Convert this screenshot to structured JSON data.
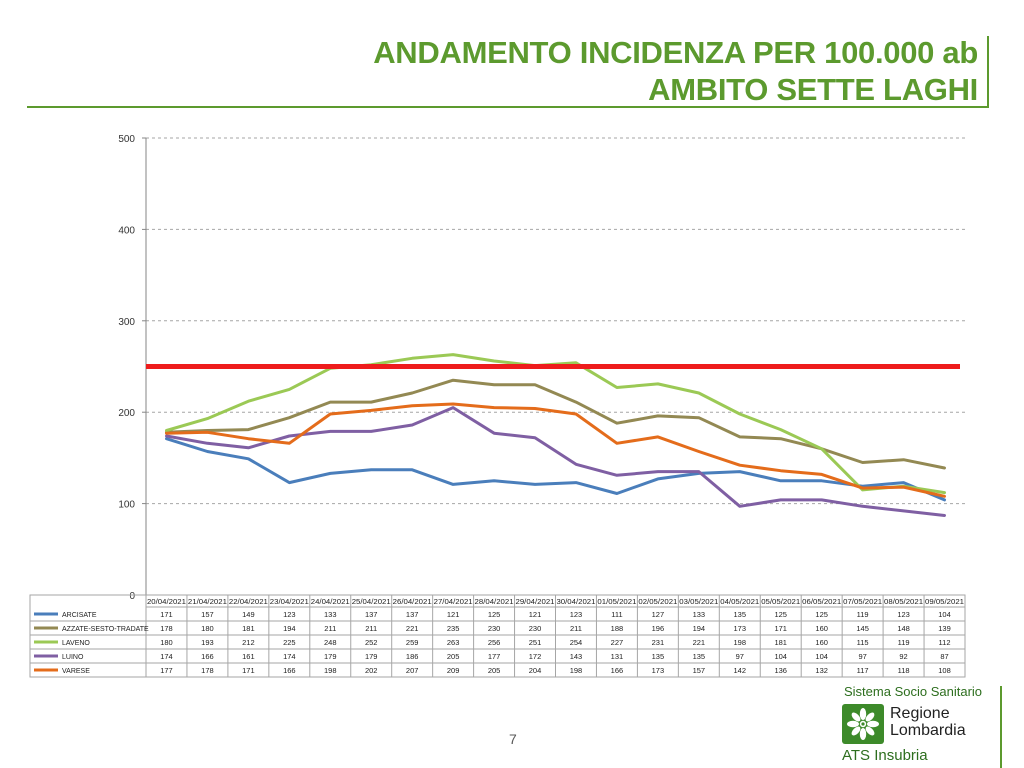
{
  "slide": {
    "title_line1": "ANDAMENTO INCIDENZA PER 100.000 ab",
    "title_line2": "AMBITO SETTE LAGHI",
    "page_number": "7"
  },
  "logo": {
    "top_text": "Sistema Socio Sanitario",
    "region_line1": "Regione",
    "region_line2": "Lombardia",
    "agency": "ATS Insubria",
    "color": "#3d8a2a"
  },
  "chart_data": {
    "type": "line",
    "categories": [
      "20/04/2021",
      "21/04/2021",
      "22/04/2021",
      "23/04/2021",
      "24/04/2021",
      "25/04/2021",
      "26/04/2021",
      "27/04/2021",
      "28/04/2021",
      "29/04/2021",
      "30/04/2021",
      "01/05/2021",
      "02/05/2021",
      "03/05/2021",
      "04/05/2021",
      "05/05/2021",
      "06/05/2021",
      "07/05/2021",
      "08/05/2021",
      "09/05/2021"
    ],
    "series": [
      {
        "name": "ARCISATE",
        "color": "#4a7ebb",
        "values": [
          171,
          157,
          149,
          123,
          133,
          137,
          137,
          121,
          125,
          121,
          123,
          111,
          127,
          133,
          135,
          125,
          125,
          119,
          123,
          104
        ]
      },
      {
        "name": "AZZATE-SESTO-TRADATE",
        "color": "#938953",
        "values": [
          178,
          180,
          181,
          194,
          211,
          211,
          221,
          235,
          230,
          230,
          211,
          188,
          196,
          194,
          173,
          171,
          160,
          145,
          148,
          139
        ]
      },
      {
        "name": "LAVENO",
        "color": "#9bc955",
        "values": [
          180,
          193,
          212,
          225,
          248,
          252,
          259,
          263,
          256,
          251,
          254,
          227,
          231,
          221,
          198,
          181,
          160,
          115,
          119,
          112
        ]
      },
      {
        "name": "LUINO",
        "color": "#7f5fa3",
        "values": [
          174,
          166,
          161,
          174,
          179,
          179,
          186,
          205,
          177,
          172,
          143,
          131,
          135,
          135,
          97,
          104,
          104,
          97,
          92,
          87
        ]
      },
      {
        "name": "VARESE",
        "color": "#e46c1b",
        "values": [
          177,
          178,
          171,
          166,
          198,
          202,
          207,
          209,
          205,
          204,
          198,
          166,
          173,
          157,
          142,
          136,
          132,
          117,
          118,
          108
        ]
      }
    ],
    "threshold": {
      "value": 250,
      "color": "#ee1c1c"
    },
    "ylim": [
      0,
      500
    ],
    "yticks": [
      0,
      100,
      200,
      300,
      400,
      500
    ],
    "grid": true,
    "legend": "data-table-below"
  }
}
